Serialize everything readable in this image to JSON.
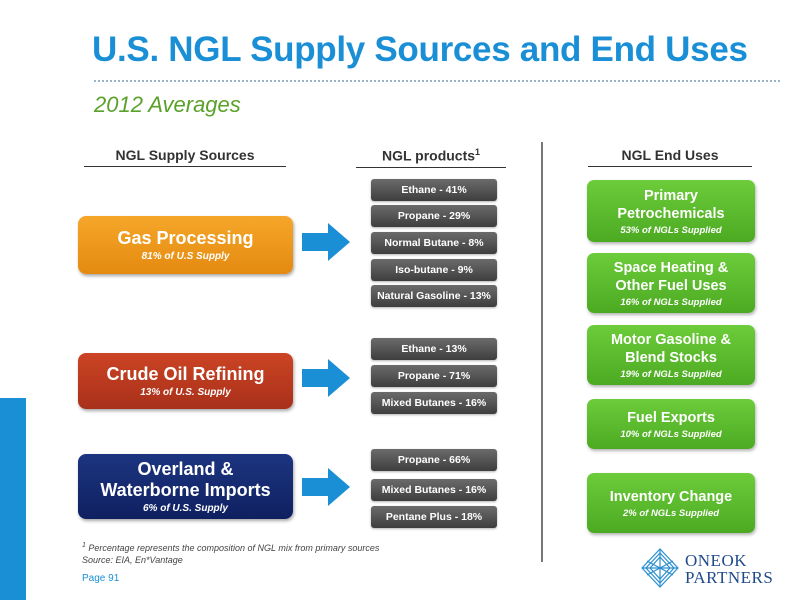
{
  "title": "U.S. NGL Supply Sources and End Uses",
  "subtitle": "2012 Averages",
  "columns": {
    "supply": "NGL Supply Sources",
    "products": "NGL products",
    "products_sup": "1",
    "end_uses": "NGL End Uses"
  },
  "sources": [
    {
      "label": "Gas Processing",
      "sub": "81% of U.S Supply",
      "color": "#f09a1a",
      "products": [
        "Ethane - 41%",
        "Propane - 29%",
        "Normal Butane - 8%",
        "Iso-butane - 9%",
        "Natural Gasoline - 13%"
      ]
    },
    {
      "label": "Crude Oil Refining",
      "sub": "13% of U.S. Supply",
      "color": "#c0381a",
      "products": [
        "Ethane - 13%",
        "Propane - 71%",
        "Mixed Butanes - 16%"
      ]
    },
    {
      "label_line1": "Overland &",
      "label_line2": "Waterborne Imports",
      "sub": "6% of U.S. Supply",
      "color": "#14286e",
      "products": [
        "Propane - 66%",
        "Mixed Butanes - 16%",
        "Pentane Plus - 18%"
      ]
    }
  ],
  "end_uses": [
    {
      "line1": "Primary",
      "line2": "Petrochemicals",
      "sub": "53% of NGLs Supplied"
    },
    {
      "line1": "Space Heating &",
      "line2": "Other Fuel Uses",
      "sub": "16% of NGLs Supplied"
    },
    {
      "line1": "Motor Gasoline &",
      "line2": "Blend Stocks",
      "sub": "19% of NGLs Supplied"
    },
    {
      "line1": "Fuel Exports",
      "sub": "10% of NGLs Supplied"
    },
    {
      "line1": "Inventory Change",
      "sub": "2% of NGLs Supplied"
    }
  ],
  "footnote": {
    "sup": "1",
    "line1": "Percentage represents the composition of NGL mix from primary sources",
    "line2": "Source: EIA, En*Vantage"
  },
  "page": "Page 91",
  "logo": {
    "line1": "ONEOK",
    "line2": "PARTNERS"
  },
  "colors": {
    "title": "#1a8fd6",
    "subtitle": "#5aa12a",
    "arrow": "#1a8fd6",
    "end_use": "#5ab52e",
    "product": "#555555"
  }
}
